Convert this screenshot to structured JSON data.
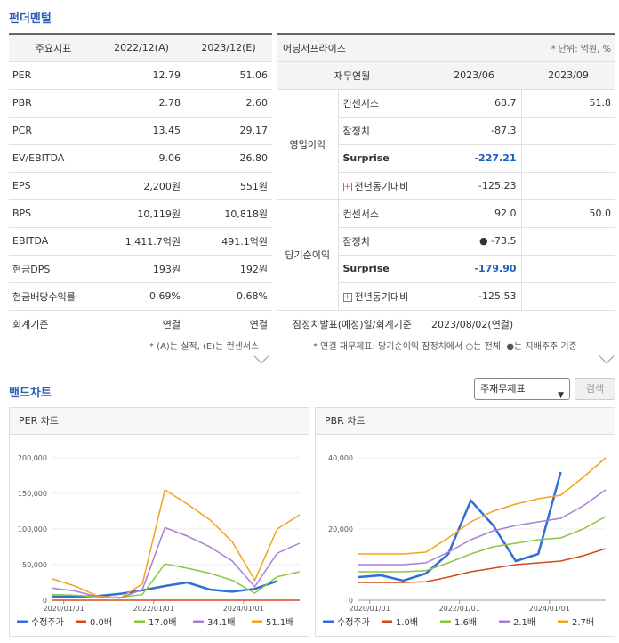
{
  "fundamental": {
    "title": "펀더멘털",
    "headers": [
      "주요지표",
      "2022/12(A)",
      "2023/12(E)"
    ],
    "rows": [
      {
        "label": "PER",
        "a": "12.79",
        "e": "51.06"
      },
      {
        "label": "PBR",
        "a": "2.78",
        "e": "2.60"
      },
      {
        "label": "PCR",
        "a": "13.45",
        "e": "29.17"
      },
      {
        "label": "EV/EBITDA",
        "a": "9.06",
        "e": "26.80"
      },
      {
        "label": "EPS",
        "a": "2,200원",
        "e": "551원"
      },
      {
        "label": "BPS",
        "a": "10,119원",
        "e": "10,818원"
      },
      {
        "label": "EBITDA",
        "a": "1,411.7억원",
        "e": "491.1억원"
      },
      {
        "label": "현금DPS",
        "a": "193원",
        "e": "192원"
      },
      {
        "label": "현금배당수익률",
        "a": "0.69%",
        "e": "0.68%"
      },
      {
        "label": "회계기준",
        "a": "연결",
        "e": "연결"
      }
    ],
    "note": "* (A)는 실적, (E)는 컨센서스"
  },
  "earnings": {
    "title": "어닝서프라이즈",
    "unit": "* 단위: 억원, %",
    "headers": [
      "재무연월",
      "2023/06",
      "2023/09"
    ],
    "groups": [
      {
        "name": "영업이익",
        "rows": [
          {
            "label": "컨센서스",
            "v1": "68.7",
            "v2": "51.8",
            "style": "normal"
          },
          {
            "label": "잠정치",
            "v1": "-87.3",
            "v2": "",
            "style": "normal"
          },
          {
            "label": "Surprise",
            "v1": "-227.21",
            "v2": "",
            "style": "surprise"
          },
          {
            "label": "전년동기대비",
            "v1": "-125.23",
            "v2": "",
            "style": "plus"
          }
        ]
      },
      {
        "name": "당기순이익",
        "rows": [
          {
            "label": "컨센서스",
            "v1": "92.0",
            "v2": "50.0",
            "style": "normal"
          },
          {
            "label": "잠정치",
            "v1": "● -73.5",
            "v2": "",
            "style": "normal"
          },
          {
            "label": "Surprise",
            "v1": "-179.90",
            "v2": "",
            "style": "surprise"
          },
          {
            "label": "전년동기대비",
            "v1": "-125.53",
            "v2": "",
            "style": "plus"
          }
        ]
      }
    ],
    "footer_label": "잠정치발표(예정)일/회계기준",
    "footer_value": "2023/08/02(연결)",
    "note": "* 연결 재무제표: 당기순이익 잠정치에서 ○는 전체, ●는 지배주주 기준"
  },
  "band": {
    "title": "밴드차트",
    "select_value": "주재무제표",
    "search_label": "검색"
  },
  "chart_data": [
    {
      "type": "line",
      "title": "PER 차트",
      "ylim": [
        0,
        200000
      ],
      "yticks": [
        "0",
        "50,000",
        "100,000",
        "150,000",
        "200,000"
      ],
      "xticks": [
        "2020/01/01",
        "2022/01/01",
        "2024/01/01"
      ],
      "x": [
        "2019/10",
        "2020/04",
        "2020/10",
        "2021/04",
        "2021/10",
        "2022/04",
        "2022/10",
        "2023/04",
        "2023/10",
        "2024/04",
        "2024/10",
        "2025/04"
      ],
      "series": [
        {
          "name": "수정주가",
          "color": "#2f6fd6",
          "values": [
            5000,
            5000,
            6000,
            9000,
            14000,
            20000,
            25000,
            15000,
            12000,
            16000,
            27000,
            null
          ]
        },
        {
          "name": "0.0배",
          "color": "#d34a1a",
          "values": [
            0,
            0,
            0,
            0,
            0,
            0,
            0,
            0,
            0,
            0,
            0,
            0
          ]
        },
        {
          "name": "17.0배",
          "color": "#8cc63f",
          "values": [
            8000,
            7000,
            5000,
            4000,
            8000,
            51000,
            45000,
            38000,
            28000,
            10000,
            33000,
            40000
          ]
        },
        {
          "name": "34.1배",
          "color": "#a97fd6",
          "values": [
            17000,
            13000,
            5000,
            3000,
            15000,
            102000,
            90000,
            75000,
            55000,
            19000,
            66000,
            80000
          ]
        },
        {
          "name": "51.1배",
          "color": "#f5a21f",
          "values": [
            30000,
            20000,
            6000,
            3000,
            23000,
            155000,
            135000,
            113000,
            82000,
            28000,
            100000,
            120000
          ]
        }
      ]
    },
    {
      "type": "line",
      "title": "PBR 차트",
      "ylim": [
        0,
        40000
      ],
      "yticks": [
        "0",
        "20,000",
        "40,000"
      ],
      "xticks": [
        "2020/01/01",
        "2022/01/01",
        "2024/01/01"
      ],
      "x": [
        "2019/10",
        "2020/04",
        "2020/10",
        "2021/04",
        "2021/10",
        "2022/04",
        "2022/10",
        "2023/04",
        "2023/10",
        "2024/04",
        "2024/10",
        "2025/04"
      ],
      "series": [
        {
          "name": "수정주가",
          "color": "#2f6fd6",
          "values": [
            6500,
            7000,
            5500,
            7500,
            13000,
            28000,
            21000,
            11000,
            13000,
            36000,
            null,
            null
          ]
        },
        {
          "name": "1.0배",
          "color": "#d34a1a",
          "values": [
            5000,
            5000,
            5000,
            5200,
            6500,
            8000,
            9000,
            10000,
            10500,
            11000,
            12500,
            14500
          ]
        },
        {
          "name": "1.6배",
          "color": "#8cc63f",
          "values": [
            8000,
            8000,
            8000,
            8300,
            10500,
            13000,
            15000,
            16000,
            17000,
            17500,
            20000,
            23500
          ]
        },
        {
          "name": "2.1배",
          "color": "#a97fd6",
          "values": [
            10000,
            10000,
            10000,
            10500,
            13500,
            17000,
            19500,
            21000,
            22000,
            23000,
            26500,
            31000
          ]
        },
        {
          "name": "2.7배",
          "color": "#f5a21f",
          "values": [
            13000,
            13000,
            13000,
            13500,
            17500,
            22000,
            25000,
            27000,
            28500,
            29500,
            34500,
            40000
          ]
        }
      ]
    }
  ]
}
